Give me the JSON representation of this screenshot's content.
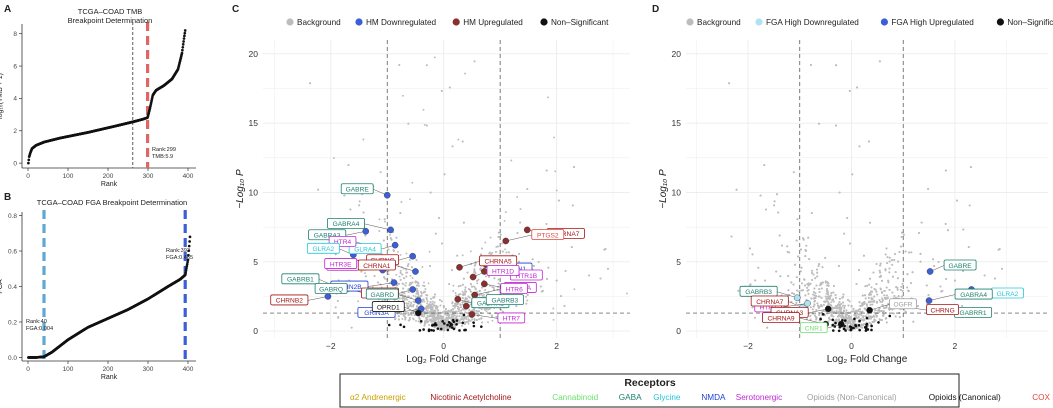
{
  "panels": {
    "A": {
      "label": "A",
      "title1": "TCGA–COAD TMB",
      "title2": "Breakpoint Determination",
      "ylabel": "log₁₀(TMB + 1)",
      "xlabel": "Rank",
      "annot1": "Rank:299",
      "annot2": "TMB:5.9"
    },
    "B": {
      "label": "B",
      "title": "TCGA–COAD FGA Breakpoint Determination",
      "ylabel": "FGA",
      "xlabel": "Rank",
      "annot_low1": "Rank:40",
      "annot_low2": "FGA:0.004",
      "annot_high1": "Rank:393",
      "annot_high2": "FGA:0.465"
    },
    "C": {
      "label": "C",
      "xlabel": "Log₂ Fold Change",
      "ylabel": "−Log₁₀ P",
      "legend": [
        "Background",
        "HM Downregulated",
        "HM Upregulated",
        "Non–Significant"
      ]
    },
    "D": {
      "label": "D",
      "xlabel": "Log₂ Fold Change",
      "ylabel": "−Log₁₀ P",
      "legend": [
        "Background",
        "FGA High Downregulated",
        "FGA High Upregulated",
        "Non–Significant"
      ]
    }
  },
  "receptors": {
    "title": "Receptors",
    "items": [
      {
        "name": "α2 Andrenergic",
        "color": "#c9a100"
      },
      {
        "name": "Nicotinic Acetylcholine",
        "color": "#a31515"
      },
      {
        "name": "Cannabinoid",
        "color": "#6ee06e"
      },
      {
        "name": "GABA",
        "color": "#1e7f6e"
      },
      {
        "name": "Glycine",
        "color": "#26c6da"
      },
      {
        "name": "NMDA",
        "color": "#1f3fd6"
      },
      {
        "name": "Serotonergic",
        "color": "#c026d3"
      },
      {
        "name": "Opioids (Non-Canonical)",
        "color": "#9e9e9e"
      },
      {
        "name": "Opioids (Canonical)",
        "color": "#111111"
      },
      {
        "name": "COX",
        "color": "#e0463e"
      }
    ]
  },
  "chart_data": [
    {
      "panel": "A",
      "type": "scatter",
      "title": "TCGA–COAD TMB Breakpoint Determination",
      "xlabel": "Rank",
      "ylabel": "log10(TMB + 1)",
      "xlim": [
        -15,
        420
      ],
      "ylim": [
        -0.3,
        8.6
      ],
      "xticks": [
        0,
        100,
        200,
        300,
        400
      ],
      "yticks": [
        0,
        2,
        4,
        6,
        8
      ],
      "vlines": [
        {
          "x": 262,
          "style": "black-dashed"
        },
        {
          "x": 299,
          "style": "red-thick-dashed"
        }
      ],
      "curve_anchors_x": [
        1,
        3,
        6,
        10,
        20,
        40,
        80,
        150,
        220,
        262,
        285,
        295,
        299,
        305,
        312,
        320,
        340,
        360,
        375,
        385,
        390,
        393
      ],
      "curve_anchors_y": [
        0,
        0.4,
        0.65,
        0.9,
        1.1,
        1.3,
        1.55,
        1.9,
        2.3,
        2.55,
        2.7,
        2.78,
        2.82,
        3.4,
        4.2,
        4.5,
        4.8,
        5.2,
        5.8,
        6.8,
        7.7,
        8.2
      ]
    },
    {
      "panel": "B",
      "type": "scatter",
      "title": "TCGA–COAD FGA Breakpoint Determination",
      "xlabel": "Rank",
      "ylabel": "FGA",
      "xlim": [
        -15,
        420
      ],
      "ylim": [
        -0.02,
        0.82
      ],
      "xticks": [
        0,
        100,
        200,
        300,
        400
      ],
      "yticks": [
        0.0,
        0.2,
        0.4,
        0.6,
        0.8
      ],
      "vlines": [
        {
          "x": 40,
          "style": "lightblue-thick-dashed"
        },
        {
          "x": 393,
          "style": "blue-thick-dashed"
        }
      ],
      "curve_anchors_x": [
        1,
        20,
        40,
        60,
        100,
        150,
        200,
        250,
        300,
        350,
        380,
        393,
        400,
        405
      ],
      "curve_anchors_y": [
        0,
        0,
        0.004,
        0.03,
        0.1,
        0.17,
        0.22,
        0.27,
        0.33,
        0.4,
        0.44,
        0.465,
        0.55,
        0.68
      ]
    },
    {
      "panel": "C",
      "type": "scatter",
      "subtype": "volcano",
      "xlabel": "Log2 Fold Change",
      "ylabel": "-Log10 P",
      "xlim": [
        -3.2,
        3.3
      ],
      "ylim": [
        -0.5,
        21
      ],
      "xticks": [
        -2,
        0,
        2
      ],
      "yticks": [
        0,
        5,
        10,
        15,
        20
      ],
      "vlines": [
        -1,
        1
      ],
      "hline": 1.3,
      "genes": [
        {
          "label": "GABRE",
          "group": "GABA",
          "x": -1.0,
          "y": 9.8,
          "reg": "down"
        },
        {
          "label": "GABRA3",
          "group": "GABA",
          "x": -1.38,
          "y": 7.2,
          "reg": "down"
        },
        {
          "label": "GABRA4",
          "group": "GABA",
          "x": -0.94,
          "y": 7.3,
          "reg": "down"
        },
        {
          "label": "GLRA4",
          "group": "Glycine",
          "x": -0.86,
          "y": 6.2,
          "reg": "down"
        },
        {
          "label": "HTR4",
          "group": "Serotonergic",
          "x": -1.2,
          "y": 6.0,
          "reg": "down"
        },
        {
          "label": "ADRA2C",
          "group": "α2 Andrenergic",
          "x": -0.9,
          "y": 5.0,
          "reg": "down"
        },
        {
          "label": "GLRA2",
          "group": "Glycine",
          "x": -1.6,
          "y": 5.5,
          "reg": "down"
        },
        {
          "label": "HTR1E",
          "group": "Serotonergic",
          "x": -1.15,
          "y": 5.0,
          "reg": "down"
        },
        {
          "label": "HTR3E",
          "group": "Serotonergic",
          "x": -1.08,
          "y": 4.4,
          "reg": "down"
        },
        {
          "label": "CHRNG",
          "group": "Nicotinic Acetylcholine",
          "x": -0.55,
          "y": 5.4,
          "reg": "down"
        },
        {
          "label": "CHRNA1",
          "group": "Nicotinic Acetylcholine",
          "x": -0.5,
          "y": 4.3,
          "reg": "down"
        },
        {
          "label": "GRIN2B",
          "group": "NMDA",
          "x": -0.88,
          "y": 3.5,
          "reg": "down"
        },
        {
          "label": "GABRB1",
          "group": "GABA",
          "x": -1.96,
          "y": 3.3,
          "reg": "down"
        },
        {
          "label": "CHRNB2",
          "group": "Nicotinic Acetylcholine",
          "x": -2.05,
          "y": 2.5,
          "reg": "down"
        },
        {
          "label": "GABRQ",
          "group": "GABA",
          "x": -1.25,
          "y": 2.6,
          "reg": "down"
        },
        {
          "label": "CHRNB1",
          "group": "Nicotinic Acetylcholine",
          "x": -0.55,
          "y": 3.0,
          "reg": "down"
        },
        {
          "label": "GABRD",
          "group": "GABA",
          "x": -0.45,
          "y": 2.2,
          "reg": "down"
        },
        {
          "label": "GRIN3A",
          "group": "NMDA",
          "x": -0.4,
          "y": 1.6,
          "reg": "down"
        },
        {
          "label": "OPRD1",
          "group": "Opioids (Canonical)",
          "x": -0.45,
          "y": 1.3,
          "reg": "ns"
        },
        {
          "label": "CHRNA7",
          "group": "Nicotinic Acetylcholine",
          "x": 1.48,
          "y": 7.3,
          "reg": "up"
        },
        {
          "label": "PTGS2",
          "group": "COX",
          "x": 1.1,
          "y": 6.5,
          "reg": "up"
        },
        {
          "label": "GRIN1",
          "group": "NMDA",
          "x": 0.75,
          "y": 4.8,
          "reg": "up"
        },
        {
          "label": "CHRNA5",
          "group": "Nicotinic Acetylcholine",
          "x": 0.28,
          "y": 4.6,
          "reg": "up"
        },
        {
          "label": "HTR1B",
          "group": "Serotonergic",
          "x": 0.72,
          "y": 4.3,
          "reg": "up"
        },
        {
          "label": "HTR1D",
          "group": "Serotonergic",
          "x": 0.52,
          "y": 3.9,
          "reg": "up"
        },
        {
          "label": "HTR3A",
          "group": "Serotonergic",
          "x": 0.72,
          "y": 3.4,
          "reg": "up"
        },
        {
          "label": "HTR6",
          "group": "Serotonergic",
          "x": 0.55,
          "y": 2.6,
          "reg": "up"
        },
        {
          "label": "GABRR2",
          "group": "GABA",
          "x": 0.25,
          "y": 2.3,
          "reg": "up"
        },
        {
          "label": "GABRB3",
          "group": "GABA",
          "x": 0.4,
          "y": 1.8,
          "reg": "up"
        },
        {
          "label": "HTR7",
          "group": "Serotonergic",
          "x": 0.5,
          "y": 1.2,
          "reg": "up"
        }
      ]
    },
    {
      "panel": "D",
      "type": "scatter",
      "subtype": "volcano",
      "xlabel": "Log2 Fold Change",
      "ylabel": "-Log10 P",
      "xlim": [
        -3.2,
        3.8
      ],
      "ylim": [
        -0.5,
        21
      ],
      "xticks": [
        -2,
        0,
        2
      ],
      "yticks": [
        0,
        5,
        10,
        15,
        20
      ],
      "vlines": [
        -1,
        1
      ],
      "hline": 1.3,
      "genes": [
        {
          "label": "GABRE",
          "group": "GABA",
          "x": 1.52,
          "y": 4.3,
          "reg": "up"
        },
        {
          "label": "GLRA2",
          "group": "Glycine",
          "x": 2.32,
          "y": 3.0,
          "reg": "up"
        },
        {
          "label": "GABRA4",
          "group": "GABA",
          "x": 1.5,
          "y": 2.2,
          "reg": "up"
        },
        {
          "label": "GABRR1",
          "group": "GABA",
          "x": 1.72,
          "y": 1.6,
          "reg": "up"
        },
        {
          "label": "GABRB3",
          "group": "GABA",
          "x": -1.05,
          "y": 2.4,
          "reg": "down"
        },
        {
          "label": "HTR7",
          "group": "Serotonergic",
          "x": -0.85,
          "y": 2.0,
          "reg": "down"
        },
        {
          "label": "CHRNA7",
          "group": "Nicotinic Acetylcholine",
          "x": -0.95,
          "y": 1.7,
          "reg": "down"
        },
        {
          "label": "CHRNA3",
          "group": "Nicotinic Acetylcholine",
          "x": -0.45,
          "y": 1.6,
          "reg": "ns"
        },
        {
          "label": "CHRNA9",
          "group": "Nicotinic Acetylcholine",
          "x": -0.5,
          "y": 0.5,
          "reg": "ns"
        },
        {
          "label": "CNR1",
          "group": "Cannabinoid",
          "x": -0.2,
          "y": 0.5,
          "reg": "ns"
        },
        {
          "label": "OGFR",
          "group": "Opioids (Non-Canonical)",
          "x": 0.35,
          "y": 1.5,
          "reg": "ns"
        },
        {
          "label": "CHRNG",
          "group": "Nicotinic Acetylcholine",
          "x": 0.95,
          "y": 1.8,
          "reg": "ns"
        }
      ]
    }
  ]
}
